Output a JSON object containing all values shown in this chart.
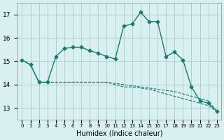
{
  "xlabel": "Humidex (Indice chaleur)",
  "x": [
    0,
    1,
    2,
    3,
    4,
    5,
    6,
    7,
    8,
    9,
    10,
    11,
    12,
    13,
    14,
    15,
    16,
    17,
    18,
    19,
    20,
    21,
    22,
    23
  ],
  "line1": [
    15.05,
    14.85,
    14.1,
    14.1,
    15.2,
    15.55,
    15.6,
    15.6,
    15.45,
    15.35,
    15.2,
    15.1,
    16.5,
    16.6,
    17.1,
    16.7,
    16.7,
    15.2,
    15.4,
    15.05,
    13.9,
    13.3,
    13.2,
    12.85
  ],
  "line2": [
    15.05,
    14.85,
    14.1,
    14.1,
    14.1,
    14.1,
    14.1,
    14.1,
    14.1,
    14.1,
    14.1,
    14.0,
    13.9,
    13.9,
    13.85,
    13.8,
    13.7,
    13.6,
    13.5,
    13.4,
    13.3,
    13.2,
    13.1,
    12.85
  ],
  "line3": [
    15.05,
    14.85,
    14.1,
    14.1,
    14.1,
    14.1,
    14.1,
    14.1,
    14.1,
    14.1,
    14.1,
    14.05,
    14.0,
    13.95,
    13.9,
    13.85,
    13.8,
    13.75,
    13.7,
    13.6,
    13.5,
    13.4,
    13.3,
    12.85
  ],
  "line_color": "#1a7a6e",
  "bg_color": "#d8f0f0",
  "grid_color": "#b0d0d0",
  "ylim": [
    12.5,
    17.5
  ],
  "yticks": [
    13,
    14,
    15,
    16,
    17
  ],
  "xlim": [
    -0.5,
    23.5
  ]
}
